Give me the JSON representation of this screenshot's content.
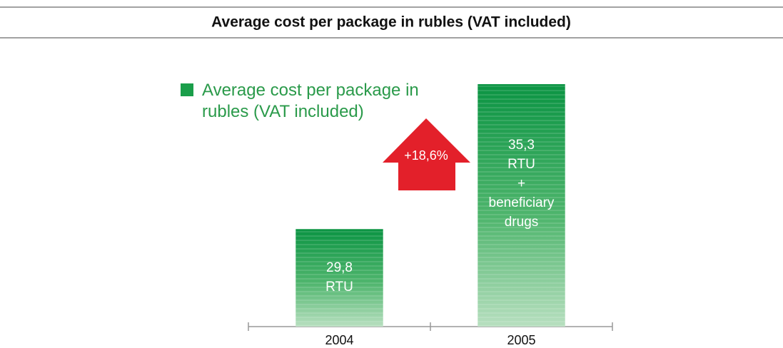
{
  "chart_data": {
    "type": "bar",
    "title": "Average cost per package in rubles (VAT included)",
    "categories": [
      "2004",
      "2005"
    ],
    "series": [
      {
        "name": "Average cost per package in rubles (VAT included)",
        "color": "#1a9e4a",
        "values": [
          29.8,
          35.3
        ],
        "value_labels": [
          "29,8",
          "35,3"
        ]
      }
    ],
    "bar_notes": [
      [
        "RTU"
      ],
      [
        "RTU",
        "+",
        "beneficiary",
        "drugs"
      ]
    ],
    "annotation": "+18,6%",
    "annotation_color": "#e3202a",
    "ylim": [
      26.1,
      35.3
    ],
    "legend": "top-left"
  }
}
